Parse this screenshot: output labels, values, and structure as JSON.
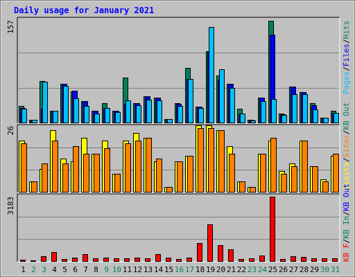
{
  "chart_data": {
    "type": "bar",
    "title": "Daily usage for January 2021",
    "days": [
      "1",
      "2",
      "3",
      "4",
      "5",
      "6",
      "7",
      "8",
      "9",
      "10",
      "11",
      "12",
      "13",
      "14",
      "15",
      "16",
      "17",
      "18",
      "19",
      "20",
      "21",
      "22",
      "23",
      "24",
      "25",
      "26",
      "27",
      "28",
      "29",
      "30",
      "31"
    ],
    "weekend_days": [
      "2",
      "3",
      "9",
      "10",
      "16",
      "17",
      "23",
      "24",
      "30",
      "31"
    ],
    "colors": {
      "background": "#c0c0c0",
      "title": "#0000ff",
      "hits": "#00805c",
      "files": "#0000ff",
      "pages": "#00c0ff",
      "visits": "#ffff00",
      "sites": "#ff8000",
      "kb_in": "#00805c",
      "kb_out": "#0000ff",
      "kb_f": "#ff0000",
      "weekend_label": "#00805c",
      "weekday_label": "#000000"
    },
    "top_panel": {
      "max_label": "157",
      "ymax": 157,
      "legend": [
        "Pages",
        "Files",
        "Hits"
      ],
      "hits": [
        25,
        4,
        62,
        18,
        58,
        47,
        32,
        18,
        29,
        18,
        68,
        29,
        40,
        37,
        5,
        29,
        82,
        24,
        107,
        71,
        58,
        21,
        4,
        37,
        153,
        14,
        54,
        46,
        29,
        7,
        18
      ],
      "files": [
        22,
        4,
        21,
        18,
        58,
        48,
        32,
        18,
        22,
        18,
        28,
        29,
        40,
        37,
        5,
        28,
        65,
        24,
        107,
        64,
        58,
        12,
        4,
        37,
        132,
        12,
        54,
        46,
        26,
        7,
        15
      ],
      "pages": [
        21,
        4,
        61,
        18,
        55,
        36,
        25,
        14,
        22,
        16,
        33,
        26,
        34,
        33,
        5,
        25,
        66,
        22,
        143,
        80,
        52,
        13,
        3,
        32,
        35,
        11,
        43,
        43,
        20,
        7,
        15
      ]
    },
    "middle_panel": {
      "max_label": "26",
      "ymax": 26,
      "legend": [
        "Visits",
        "Sites",
        "KB Out"
      ],
      "visits": [
        20,
        4,
        9,
        24,
        13,
        12,
        21,
        15,
        20,
        7,
        20,
        23,
        21,
        12,
        2,
        12,
        14,
        26,
        26,
        24,
        18,
        4,
        2,
        15,
        20,
        8,
        11,
        20,
        10,
        5,
        14
      ],
      "sites": [
        19,
        4,
        11,
        20,
        11,
        18,
        15,
        15,
        17,
        7,
        19,
        20,
        21,
        13,
        2,
        12,
        14,
        25,
        25,
        24,
        15,
        4,
        2,
        15,
        21,
        7,
        10,
        20,
        10,
        4,
        15
      ]
    },
    "bottom_panel": {
      "max_label": "3183",
      "ymax": 3183,
      "legend": [
        "KB F",
        "KB In",
        "KB Out"
      ],
      "kb_f": [
        80,
        40,
        220,
        440,
        110,
        150,
        320,
        140,
        150,
        120,
        130,
        160,
        130,
        320,
        150,
        110,
        160,
        860,
        1760,
        760,
        560,
        110,
        130,
        260,
        3100,
        110,
        230,
        190,
        140,
        130,
        120
      ]
    }
  }
}
